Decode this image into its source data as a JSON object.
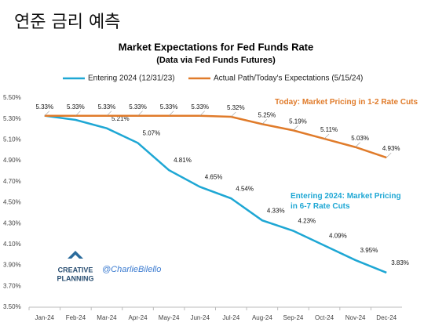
{
  "header": "연준 금리 예측",
  "chart_data": {
    "type": "line",
    "title": "Market Expectations for Fed Funds Rate",
    "subtitle": "(Data via Fed Funds Futures)",
    "categories": [
      "Jan-24",
      "Feb-24",
      "Mar-24",
      "Apr-24",
      "May-24",
      "Jun-24",
      "Jul-24",
      "Aug-24",
      "Sep-24",
      "Oct-24",
      "Nov-24",
      "Dec-24"
    ],
    "series": [
      {
        "name": "Entering 2024 (12/31/23)",
        "color": "#1ea7d4",
        "values": [
          5.33,
          5.29,
          5.21,
          5.07,
          4.81,
          4.65,
          4.54,
          4.33,
          4.23,
          4.09,
          3.95,
          3.83
        ],
        "value_labels": [
          null,
          null,
          "5.21%",
          "5.07%",
          "4.81%",
          "4.65%",
          "4.54%",
          "4.33%",
          "4.23%",
          "4.09%",
          "3.95%",
          "3.83%"
        ]
      },
      {
        "name": "Actual Path/Today's Expectations (5/15/24)",
        "color": "#e07b2a",
        "values": [
          5.33,
          5.33,
          5.33,
          5.33,
          5.33,
          5.33,
          5.32,
          5.25,
          5.19,
          5.11,
          5.03,
          4.93
        ],
        "value_labels": [
          "5.33%",
          "5.33%",
          "5.33%",
          "5.33%",
          "5.33%",
          "5.33%",
          "5.32%",
          "5.25%",
          "5.19%",
          "5.11%",
          "5.03%",
          "4.93%"
        ]
      }
    ],
    "ylim": [
      3.5,
      5.5
    ],
    "yticks": [
      {
        "value": 3.5,
        "label": "3.50%"
      },
      {
        "value": 3.7,
        "label": "3.70%"
      },
      {
        "value": 3.9,
        "label": "3.90%"
      },
      {
        "value": 4.1,
        "label": "4.10%"
      },
      {
        "value": 4.3,
        "label": "4.30%"
      },
      {
        "value": 4.5,
        "label": "4.50%"
      },
      {
        "value": 4.7,
        "label": "4.70%"
      },
      {
        "value": 4.9,
        "label": "4.90%"
      },
      {
        "value": 5.1,
        "label": "5.10%"
      },
      {
        "value": 5.3,
        "label": "5.30%"
      },
      {
        "value": 5.5,
        "label": "5.50%"
      }
    ],
    "grid": false,
    "legend": "top",
    "annotations": [
      "Today: Market Pricing in 1-2 Rate Cuts",
      "Entering 2024: Market Pricing in 6-7 Rate Cuts"
    ],
    "logo": [
      "CREATIVE",
      "PLANNING"
    ],
    "credit": "@CharlieBilello"
  }
}
